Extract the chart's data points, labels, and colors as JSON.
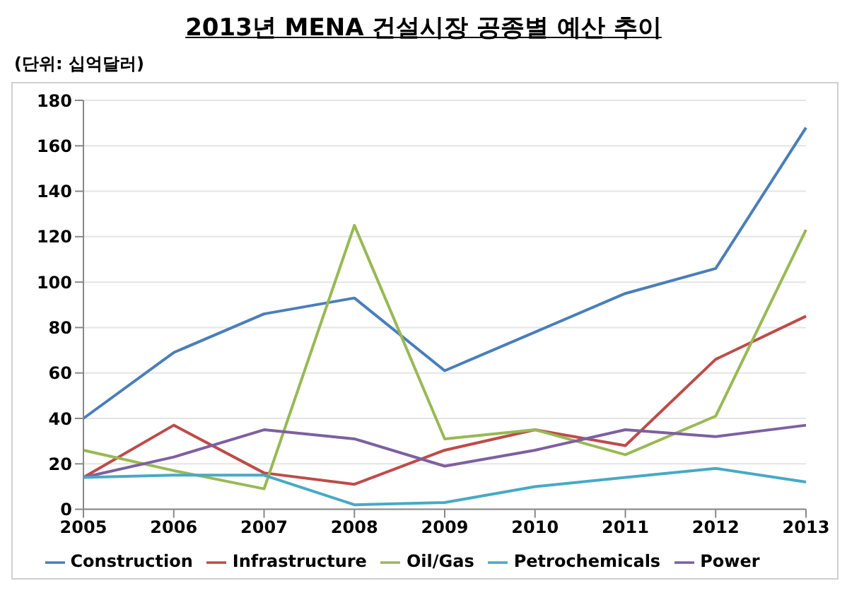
{
  "chart_data": {
    "type": "line",
    "title": "2013년 MENA 건설시장 공종별 예산 추이",
    "subtitle": "(단위: 십억달러)",
    "categories": [
      "2005",
      "2006",
      "2007",
      "2008",
      "2009",
      "2010",
      "2011",
      "2012",
      "2013"
    ],
    "series": [
      {
        "name": "Construction",
        "color": "#4a7ebb",
        "values": [
          40,
          69,
          86,
          93,
          61,
          78,
          95,
          106,
          168
        ]
      },
      {
        "name": "Infrastructure",
        "color": "#be4b48",
        "values": [
          14,
          37,
          16,
          11,
          26,
          35,
          28,
          66,
          85
        ]
      },
      {
        "name": "Oil/Gas",
        "color": "#98b954",
        "values": [
          26,
          17,
          9,
          125,
          31,
          35,
          24,
          41,
          123
        ]
      },
      {
        "name": "Power",
        "color": "#7d60a0",
        "values": [
          14,
          23,
          35,
          31,
          19,
          26,
          35,
          32,
          37
        ]
      },
      {
        "name": "Petrochemicals",
        "color": "#46aac5",
        "values": [
          14,
          15,
          15,
          2,
          3,
          10,
          14,
          18,
          12
        ]
      }
    ],
    "ylim": [
      0,
      180
    ],
    "yticks": [
      0,
      20,
      40,
      60,
      80,
      100,
      120,
      140,
      160,
      180
    ],
    "grid": "y",
    "legend": "bottom",
    "marker": "none",
    "line_style": "solid"
  }
}
